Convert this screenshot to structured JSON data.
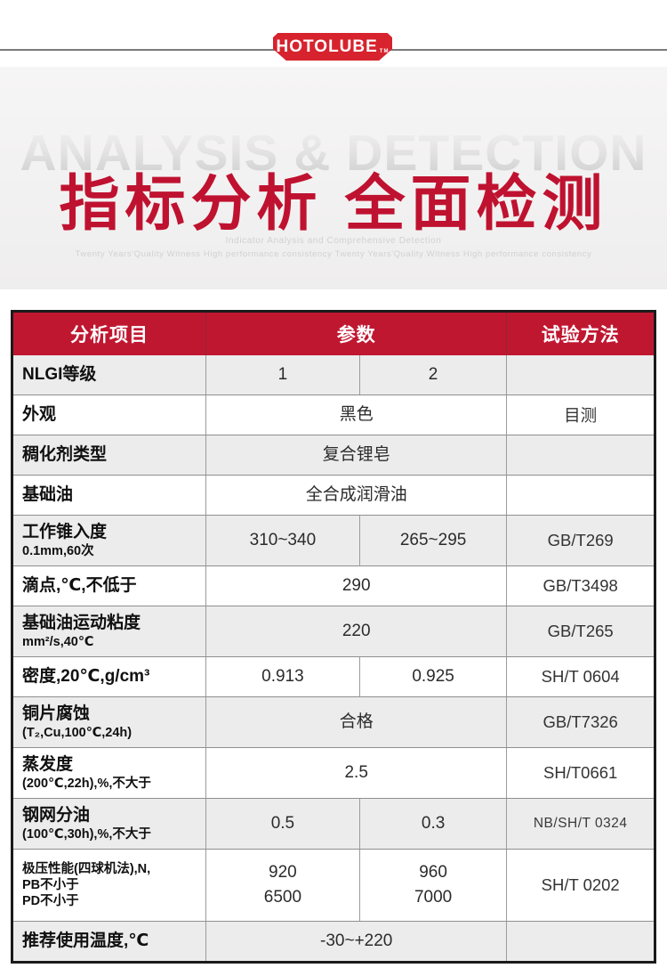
{
  "logo": {
    "text": "HOTOLUBE",
    "tm": "TM"
  },
  "hero": {
    "watermark": "ANALYSIS & DETECTION",
    "title": "指标分析 全面检测",
    "subtitle1": "Indicator Analysis and Comprehensive Detection",
    "subtitle2": "Twenty Years'Quality Witness High performance consistency Twenty Years'Quality Witness High performance consistency"
  },
  "colors": {
    "brand_red": "#d7232e",
    "table_header_red": "#c01731",
    "title_red": "#bf1230",
    "shaded_row": "#ececec"
  },
  "table": {
    "headers": [
      "分析项目",
      "参数",
      "试验方法"
    ],
    "rows": [
      {
        "lines": [
          {
            "text": "NLGI等级",
            "size": "lg"
          }
        ],
        "values": [
          "1",
          "2"
        ],
        "span": false,
        "method": "",
        "method_small": false,
        "shaded": true
      },
      {
        "lines": [
          {
            "text": "外观",
            "size": "lg"
          }
        ],
        "values": [
          "黑色"
        ],
        "span": true,
        "method": "目测",
        "method_small": false,
        "shaded": false
      },
      {
        "lines": [
          {
            "text": "稠化剂类型",
            "size": "lg"
          }
        ],
        "values": [
          "复合锂皂"
        ],
        "span": true,
        "method": "",
        "method_small": false,
        "shaded": true
      },
      {
        "lines": [
          {
            "text": "基础油",
            "size": "lg"
          }
        ],
        "values": [
          "全合成润滑油"
        ],
        "span": true,
        "method": "",
        "method_small": false,
        "shaded": false
      },
      {
        "lines": [
          {
            "text": "工作锥入度",
            "size": "lg"
          },
          {
            "text": "0.1mm,60次",
            "size": "sm"
          }
        ],
        "values": [
          "310~340",
          "265~295"
        ],
        "span": false,
        "method": "GB/T269",
        "method_small": false,
        "shaded": true
      },
      {
        "lines": [
          {
            "text": "滴点,℃,不低于",
            "size": "lg"
          }
        ],
        "values": [
          "290"
        ],
        "span": true,
        "method": "GB/T3498",
        "method_small": false,
        "shaded": false
      },
      {
        "lines": [
          {
            "text": "基础油运动粘度",
            "size": "lg"
          },
          {
            "text": "mm²/s,40℃",
            "size": "sm"
          }
        ],
        "values": [
          "220"
        ],
        "span": true,
        "method": "GB/T265",
        "method_small": false,
        "shaded": true
      },
      {
        "lines": [
          {
            "text": "密度,20℃,g/cm³",
            "size": "lg"
          }
        ],
        "values": [
          "0.913",
          "0.925"
        ],
        "span": false,
        "method": "SH/T 0604",
        "method_small": false,
        "shaded": false
      },
      {
        "lines": [
          {
            "text": "铜片腐蚀",
            "size": "lg"
          },
          {
            "text": "(T₂,Cu,100℃,24h)",
            "size": "sm"
          }
        ],
        "values": [
          "合格"
        ],
        "span": true,
        "method": "GB/T7326",
        "method_small": false,
        "shaded": true
      },
      {
        "lines": [
          {
            "text": "蒸发度",
            "size": "lg"
          },
          {
            "text": "(200℃,22h),%,不大于",
            "size": "sm"
          }
        ],
        "values": [
          "2.5"
        ],
        "span": true,
        "method": "SH/T0661",
        "method_small": false,
        "shaded": false
      },
      {
        "lines": [
          {
            "text": "钢网分油",
            "size": "lg"
          },
          {
            "text": "(100℃,30h),%,不大于",
            "size": "sm"
          }
        ],
        "values": [
          "0.5",
          "0.3"
        ],
        "span": false,
        "method": "NB/SH/T 0324",
        "method_small": true,
        "shaded": true
      },
      {
        "lines": [
          {
            "text": "极压性能(四球机法),N,",
            "size": "sm"
          },
          {
            "text": "PB不小于",
            "size": "sm"
          },
          {
            "text": "PD不小于",
            "size": "sm"
          }
        ],
        "values": [
          "920\n6500",
          "960\n7000"
        ],
        "span": false,
        "method": "SH/T 0202",
        "method_small": false,
        "shaded": false
      },
      {
        "lines": [
          {
            "text": "推荐使用温度,℃",
            "size": "lg"
          }
        ],
        "values": [
          "-30~+220"
        ],
        "span": true,
        "method": "",
        "method_small": false,
        "shaded": true
      }
    ]
  }
}
